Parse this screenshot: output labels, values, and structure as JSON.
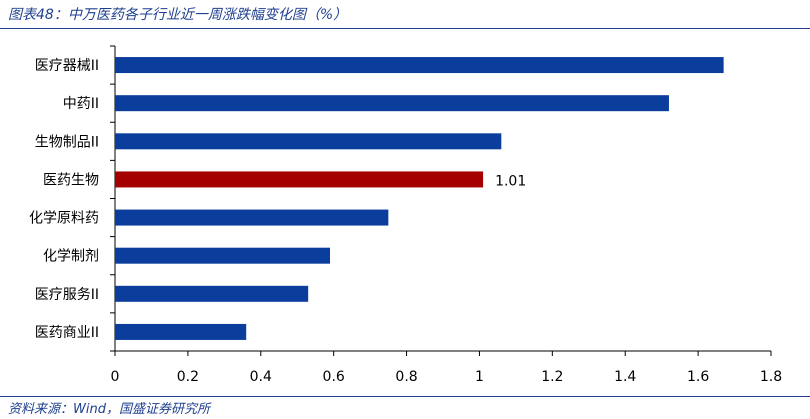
{
  "header": {
    "title": "图表48：中万医药各子行业近一周涨跌幅变化图（%）"
  },
  "footer": {
    "source": "资料来源：Wind，国盛证券研究所"
  },
  "colors": {
    "bar": "#0a3d9c",
    "highlight": "#a40000",
    "rule": "#1f3f8f"
  },
  "chart_data": {
    "type": "bar",
    "orientation": "horizontal",
    "categories": [
      "医疗器械II",
      "中药II",
      "生物制品II",
      "医药生物",
      "化学原料药",
      "化学制剂",
      "医疗服务II",
      "医药商业II"
    ],
    "values": [
      1.67,
      1.52,
      1.06,
      1.01,
      0.75,
      0.59,
      0.53,
      0.36
    ],
    "highlight_index": 3,
    "data_labels": {
      "3": "1.01"
    },
    "xlim": [
      0,
      1.8
    ],
    "xticks": [
      "0",
      "0.2",
      "0.4",
      "0.6",
      "0.8",
      "1",
      "1.2",
      "1.4",
      "1.6",
      "1.8"
    ],
    "grid": false
  }
}
